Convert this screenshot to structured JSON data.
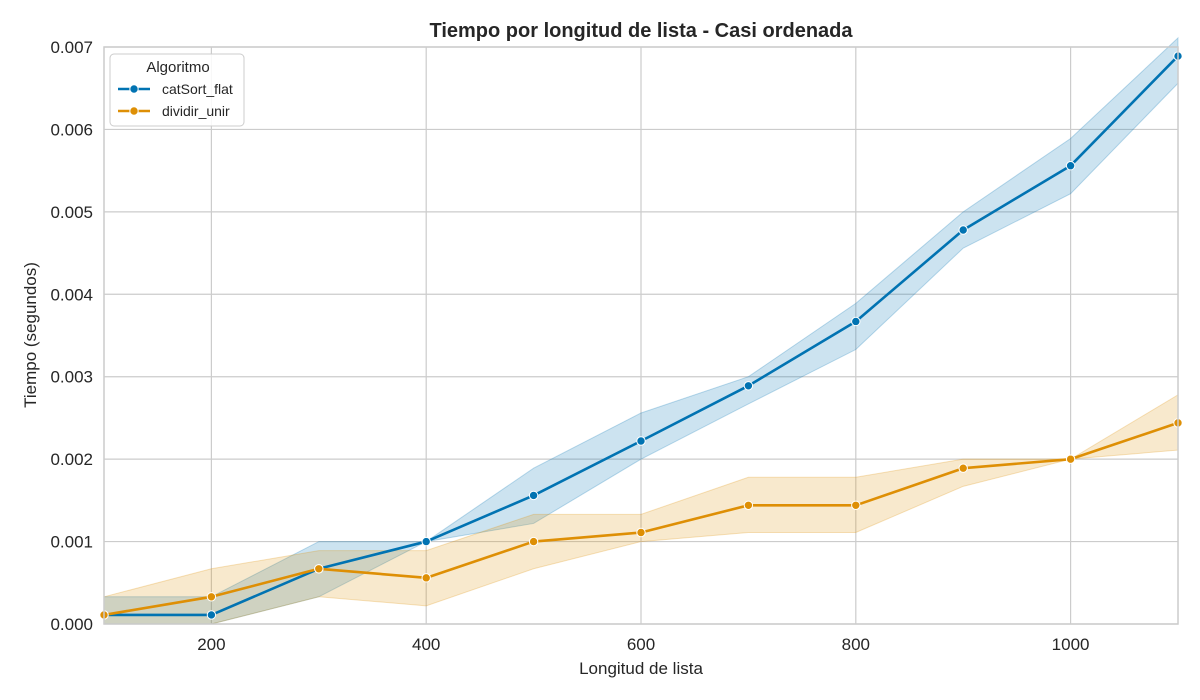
{
  "chart_data": {
    "type": "line",
    "title": "Tiempo por longitud de lista - Casi ordenada",
    "xlabel": "Longitud de lista",
    "ylabel": "Tiempo (segundos)",
    "xlim": [
      100,
      1100
    ],
    "ylim": [
      0,
      0.007
    ],
    "x_ticks": [
      200,
      400,
      600,
      800,
      1000
    ],
    "y_ticks": [
      0.0,
      0.001,
      0.002,
      0.003,
      0.004,
      0.005,
      0.006,
      0.007
    ],
    "y_tick_labels": [
      "0.000",
      "0.001",
      "0.002",
      "0.003",
      "0.004",
      "0.005",
      "0.006",
      "0.007"
    ],
    "grid": true,
    "legend": {
      "title": "Algoritmo",
      "placement": "top-left"
    },
    "x": [
      100,
      200,
      300,
      400,
      500,
      600,
      700,
      800,
      900,
      1000,
      1100
    ],
    "series": [
      {
        "name": "catSort_flat",
        "color": "#0173b2",
        "values": [
          0.00011,
          0.00011,
          0.00067,
          0.001,
          0.00156,
          0.00222,
          0.00289,
          0.00367,
          0.00478,
          0.00556,
          0.00689
        ],
        "ci_low": [
          0.0,
          0.0,
          0.00033,
          0.001,
          0.00122,
          0.002,
          0.00267,
          0.00333,
          0.00456,
          0.00522,
          0.00656
        ],
        "ci_high": [
          0.00033,
          0.00033,
          0.001,
          0.001,
          0.00189,
          0.00256,
          0.003,
          0.00389,
          0.005,
          0.00589,
          0.00711
        ]
      },
      {
        "name": "dividir_unir",
        "color": "#de8f05",
        "values": [
          0.00011,
          0.00033,
          0.00067,
          0.00056,
          0.001,
          0.00111,
          0.00144,
          0.00144,
          0.00189,
          0.002,
          0.00244
        ],
        "ci_low": [
          0.0,
          0.0,
          0.00033,
          0.00022,
          0.00067,
          0.001,
          0.00111,
          0.00111,
          0.00167,
          0.002,
          0.00211
        ],
        "ci_high": [
          0.00033,
          0.00067,
          0.00089,
          0.00089,
          0.00133,
          0.00133,
          0.00178,
          0.00178,
          0.002,
          0.002,
          0.00278
        ]
      }
    ]
  }
}
